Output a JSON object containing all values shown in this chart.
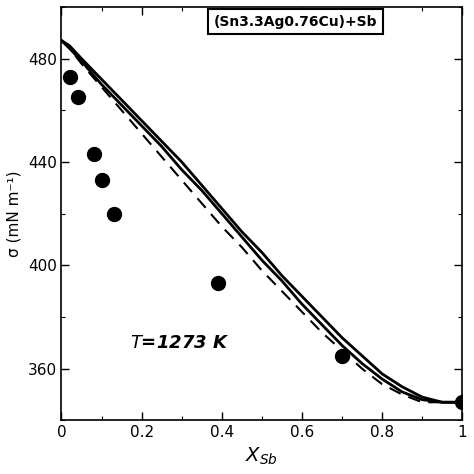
{
  "scatter_x": [
    0.02,
    0.04,
    0.08,
    0.1,
    0.13,
    0.39,
    0.7,
    1.0
  ],
  "scatter_y": [
    473,
    465,
    443,
    433,
    420,
    393,
    365,
    347
  ],
  "xlim": [
    0,
    1.0
  ],
  "ylim": [
    340,
    500
  ],
  "yticks": [
    360,
    400,
    440,
    480
  ],
  "xticks": [
    0,
    0.2,
    0.4,
    0.6,
    0.8,
    1
  ],
  "ylabel": "σ (mN m⁻¹)",
  "xlabel": "$X_{Sb}$",
  "annotation": "$\\mathit{T}$=1273 K",
  "box_label": "(Sn3.3Ag0.76Cu)+Sb",
  "background_color": "#ffffff",
  "curve_x": [
    0.0,
    0.02,
    0.05,
    0.1,
    0.15,
    0.2,
    0.25,
    0.3,
    0.35,
    0.4,
    0.45,
    0.5,
    0.55,
    0.6,
    0.65,
    0.7,
    0.75,
    0.8,
    0.85,
    0.9,
    0.95,
    1.0
  ],
  "solid1_y": [
    487,
    484,
    479,
    470,
    462,
    454,
    446,
    437,
    429,
    420,
    411,
    402,
    394,
    385,
    377,
    369,
    362,
    356,
    351,
    348,
    347,
    347
  ],
  "dashed_y": [
    487,
    484,
    478,
    469,
    460,
    451,
    442,
    433,
    424,
    415,
    407,
    398,
    390,
    382,
    374,
    367,
    360,
    354,
    350,
    347,
    347,
    347
  ],
  "solid2_y": [
    487,
    485,
    480,
    472,
    464,
    456,
    448,
    440,
    431,
    422,
    413,
    405,
    396,
    388,
    380,
    372,
    365,
    358,
    353,
    349,
    347,
    347
  ]
}
